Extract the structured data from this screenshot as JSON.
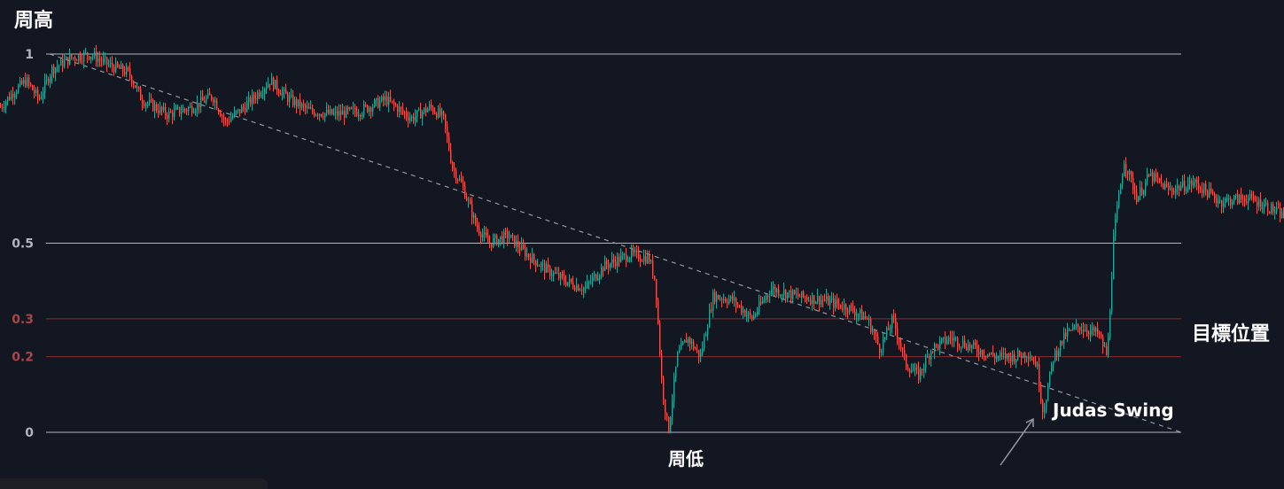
{
  "annotations": {
    "week_high": "周高",
    "week_low": "周低",
    "target": "目標位置",
    "judas": "Judas Swing"
  },
  "colors": {
    "background": "#131722",
    "white_level": "#b2b5be",
    "red_level": "#8c2a2e",
    "up_candle": "#26a69a",
    "down_candle": "#ef5350",
    "trendline": "#9598a1",
    "arrow": "#9598a1",
    "tick_white": "#b2b5be",
    "tick_red": "#a8464b"
  },
  "chart_data": {
    "type": "line",
    "title": "",
    "xlabel": "",
    "ylabel": "",
    "ylim": [
      0,
      1
    ],
    "levels": [
      {
        "value": 1,
        "label": "1",
        "style": "white"
      },
      {
        "value": 0.5,
        "label": "0.5",
        "style": "white"
      },
      {
        "value": 0.3,
        "label": "0.3",
        "style": "red"
      },
      {
        "value": 0.2,
        "label": "0.2",
        "style": "red"
      },
      {
        "value": 0,
        "label": "0",
        "style": "white"
      }
    ],
    "trendline": {
      "from": [
        0.04,
        1.0
      ],
      "to": [
        0.92,
        0.0
      ],
      "style": "dashed"
    },
    "price_path": [
      [
        0.0,
        0.86
      ],
      [
        0.01,
        0.9
      ],
      [
        0.02,
        0.93
      ],
      [
        0.03,
        0.88
      ],
      [
        0.04,
        0.96
      ],
      [
        0.055,
        0.99
      ],
      [
        0.07,
        1.0
      ],
      [
        0.085,
        0.97
      ],
      [
        0.1,
        0.95
      ],
      [
        0.11,
        0.88
      ],
      [
        0.13,
        0.84
      ],
      [
        0.15,
        0.86
      ],
      [
        0.165,
        0.89
      ],
      [
        0.175,
        0.82
      ],
      [
        0.19,
        0.86
      ],
      [
        0.21,
        0.93
      ],
      [
        0.225,
        0.88
      ],
      [
        0.24,
        0.85
      ],
      [
        0.26,
        0.84
      ],
      [
        0.28,
        0.85
      ],
      [
        0.3,
        0.88
      ],
      [
        0.32,
        0.83
      ],
      [
        0.335,
        0.86
      ],
      [
        0.345,
        0.83
      ],
      [
        0.352,
        0.7
      ],
      [
        0.36,
        0.65
      ],
      [
        0.37,
        0.55
      ],
      [
        0.38,
        0.5
      ],
      [
        0.395,
        0.52
      ],
      [
        0.41,
        0.47
      ],
      [
        0.425,
        0.43
      ],
      [
        0.44,
        0.4
      ],
      [
        0.455,
        0.38
      ],
      [
        0.47,
        0.44
      ],
      [
        0.49,
        0.47
      ],
      [
        0.505,
        0.46
      ],
      [
        0.51,
        0.4
      ],
      [
        0.515,
        0.13
      ],
      [
        0.52,
        0.0
      ],
      [
        0.527,
        0.2
      ],
      [
        0.535,
        0.25
      ],
      [
        0.545,
        0.2
      ],
      [
        0.555,
        0.36
      ],
      [
        0.57,
        0.35
      ],
      [
        0.585,
        0.3
      ],
      [
        0.6,
        0.38
      ],
      [
        0.62,
        0.36
      ],
      [
        0.64,
        0.35
      ],
      [
        0.66,
        0.33
      ],
      [
        0.675,
        0.3
      ],
      [
        0.685,
        0.22
      ],
      [
        0.695,
        0.3
      ],
      [
        0.705,
        0.18
      ],
      [
        0.715,
        0.15
      ],
      [
        0.725,
        0.22
      ],
      [
        0.74,
        0.25
      ],
      [
        0.76,
        0.22
      ],
      [
        0.775,
        0.2
      ],
      [
        0.79,
        0.2
      ],
      [
        0.8,
        0.21
      ],
      [
        0.807,
        0.18
      ],
      [
        0.812,
        0.05
      ],
      [
        0.82,
        0.2
      ],
      [
        0.83,
        0.26
      ],
      [
        0.84,
        0.28
      ],
      [
        0.855,
        0.26
      ],
      [
        0.862,
        0.2
      ],
      [
        0.867,
        0.52
      ],
      [
        0.875,
        0.72
      ],
      [
        0.885,
        0.62
      ],
      [
        0.895,
        0.68
      ],
      [
        0.91,
        0.64
      ],
      [
        0.93,
        0.66
      ],
      [
        0.95,
        0.61
      ],
      [
        0.97,
        0.62
      ],
      [
        0.985,
        0.6
      ],
      [
        1.0,
        0.57
      ]
    ]
  }
}
